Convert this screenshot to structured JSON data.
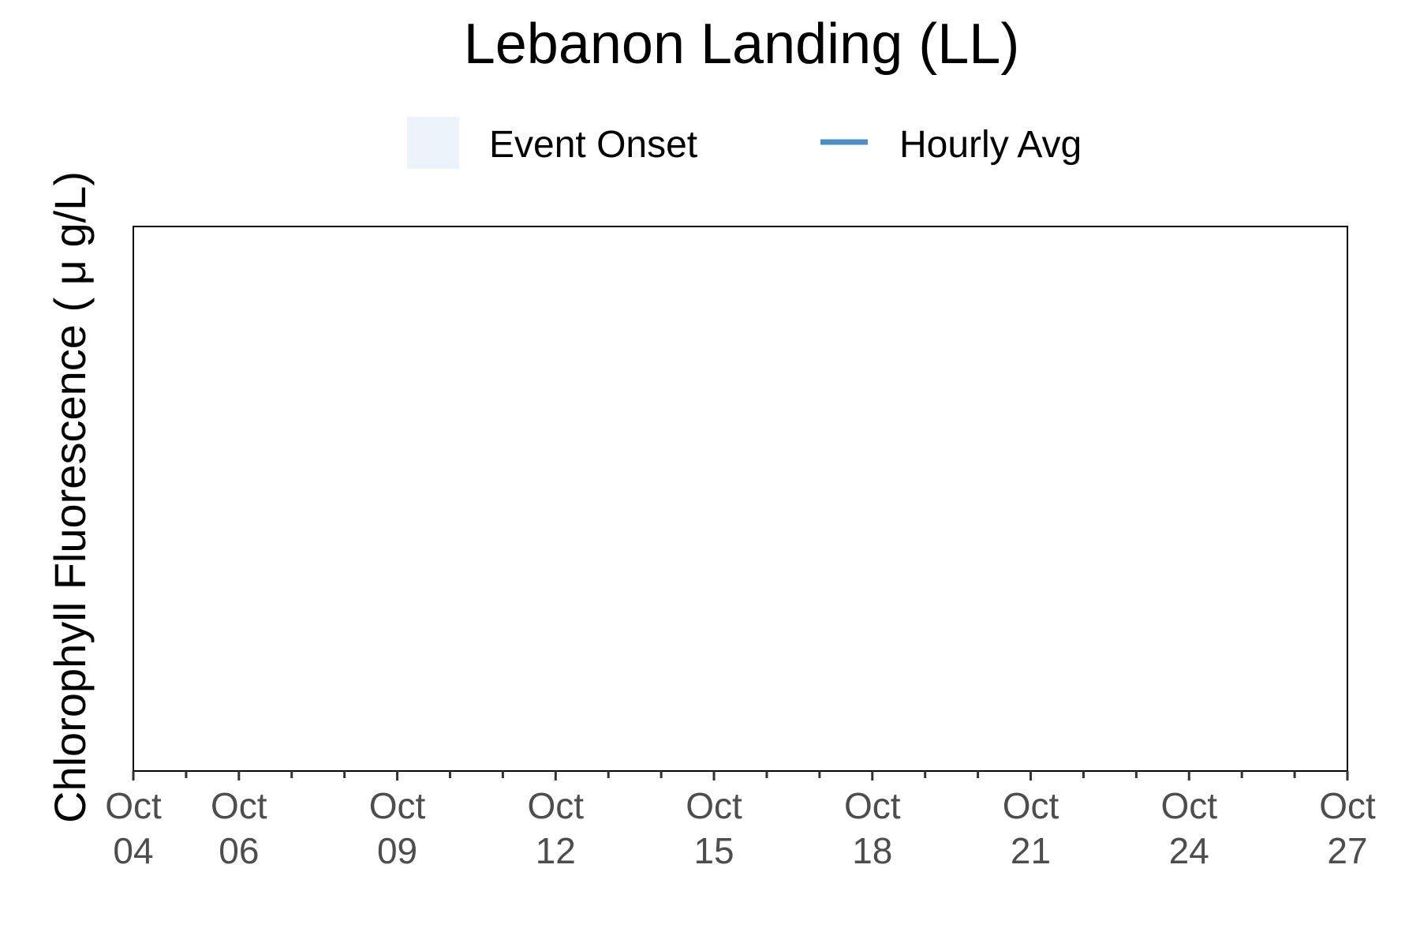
{
  "chart_data": {
    "type": "line",
    "title": "Lebanon Landing (LL)",
    "xlabel": "",
    "ylabel": "Chlorophyll Fluorescence ( μ g/L)",
    "x_axis_type": "date",
    "xlim": [
      "2023-10-04",
      "2023-10-27"
    ],
    "x_ticks": [
      {
        "date": "2023-10-04",
        "label": [
          "Oct",
          "04"
        ]
      },
      {
        "date": "2023-10-06",
        "label": [
          "Oct",
          "06"
        ]
      },
      {
        "date": "2023-10-09",
        "label": [
          "Oct",
          "09"
        ]
      },
      {
        "date": "2023-10-12",
        "label": [
          "Oct",
          "12"
        ]
      },
      {
        "date": "2023-10-15",
        "label": [
          "Oct",
          "15"
        ]
      },
      {
        "date": "2023-10-18",
        "label": [
          "Oct",
          "18"
        ]
      },
      {
        "date": "2023-10-21",
        "label": [
          "Oct",
          "21"
        ]
      },
      {
        "date": "2023-10-24",
        "label": [
          "Oct",
          "24"
        ]
      },
      {
        "date": "2023-10-27",
        "label": [
          "Oct",
          "27"
        ]
      }
    ],
    "x_minor_tick_dates": [
      "2023-10-05",
      "2023-10-07",
      "2023-10-08",
      "2023-10-10",
      "2023-10-11",
      "2023-10-13",
      "2023-10-14",
      "2023-10-16",
      "2023-10-17",
      "2023-10-19",
      "2023-10-20",
      "2023-10-22",
      "2023-10-23",
      "2023-10-25",
      "2023-10-26"
    ],
    "grid": false,
    "legend_position": "top",
    "legend": [
      {
        "name": "Event Onset",
        "kind": "area",
        "color": "#edf3fa"
      },
      {
        "name": "Hourly Avg",
        "kind": "line",
        "color": "#4a8fcb"
      }
    ],
    "series": [
      {
        "name": "Hourly Avg",
        "x": [],
        "values": []
      }
    ],
    "events": []
  }
}
